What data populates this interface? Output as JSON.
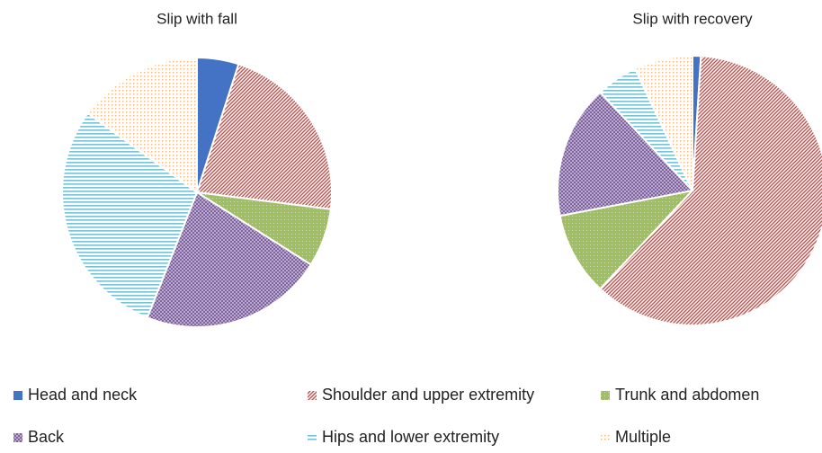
{
  "chart_data": [
    {
      "type": "pie",
      "title": "Slip with fall",
      "categories": [
        "Head and neck",
        "Shoulder and upper extremity",
        "Trunk and abdomen",
        "Back",
        "Hips and lower extremity",
        "Multiple"
      ],
      "values": [
        5,
        22,
        7,
        22,
        29,
        15
      ],
      "colors": [
        "#4472c4",
        "#c0504d",
        "#9bbb59",
        "#8064a2",
        "#4bacc6",
        "#f79646"
      ]
    },
    {
      "type": "pie",
      "title": "Slip with recovery",
      "categories": [
        "Head and neck",
        "Shoulder and upper extremity",
        "Trunk and abdomen",
        "Back",
        "Hips and lower extremity",
        "Multiple"
      ],
      "values": [
        1,
        61,
        10,
        16,
        5,
        7
      ],
      "colors": [
        "#4472c4",
        "#c0504d",
        "#9bbb59",
        "#8064a2",
        "#4bacc6",
        "#f79646"
      ]
    }
  ]
}
